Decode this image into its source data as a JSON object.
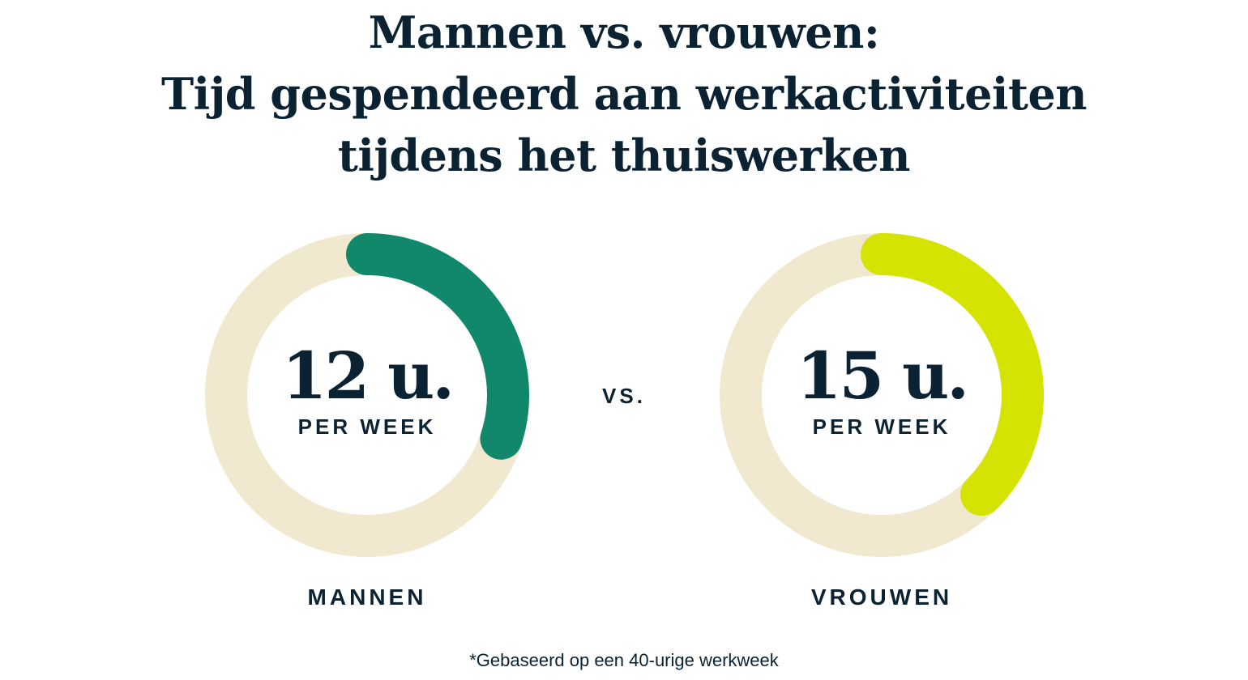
{
  "title": [
    "Mannen vs. vrouwen:",
    "Tijd gespendeerd aan werkactiviteiten",
    "tijdens het thuiswerken"
  ],
  "vs_label": "vs.",
  "footnote": "*Gebaseerd op een 40-urige werkweek",
  "chart_data": {
    "type": "pie",
    "style": "donut",
    "total": 40,
    "track_color": "#f0e9d0",
    "series": [
      {
        "name": "MANNEN",
        "value": 12,
        "value_label": "12 u.",
        "unit_label": "PER WEEK",
        "color": "#11876b"
      },
      {
        "name": "VROUWEN",
        "value": 15,
        "value_label": "15 u.",
        "unit_label": "PER WEEK",
        "color": "#d4e300"
      }
    ]
  }
}
